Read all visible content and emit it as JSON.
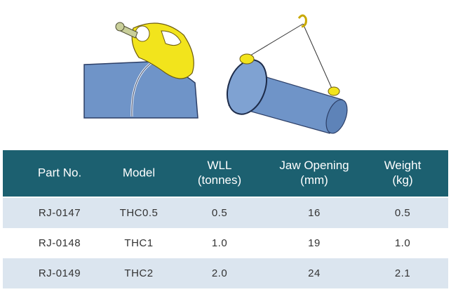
{
  "table": {
    "header": [
      [
        "Part No."
      ],
      [
        "Model"
      ],
      [
        "WLL",
        "(tonnes)"
      ],
      [
        "Jaw Opening",
        "(mm)"
      ],
      [
        "Weight",
        "(kg)"
      ]
    ],
    "rows": [
      [
        "RJ-0147",
        "THC0.5",
        "0.5",
        "16",
        "0.5"
      ],
      [
        "RJ-0148",
        "THC1",
        "1.0",
        "19",
        "1.0"
      ],
      [
        "RJ-0149",
        "THC2",
        "2.0",
        "24",
        "2.1"
      ]
    ]
  }
}
